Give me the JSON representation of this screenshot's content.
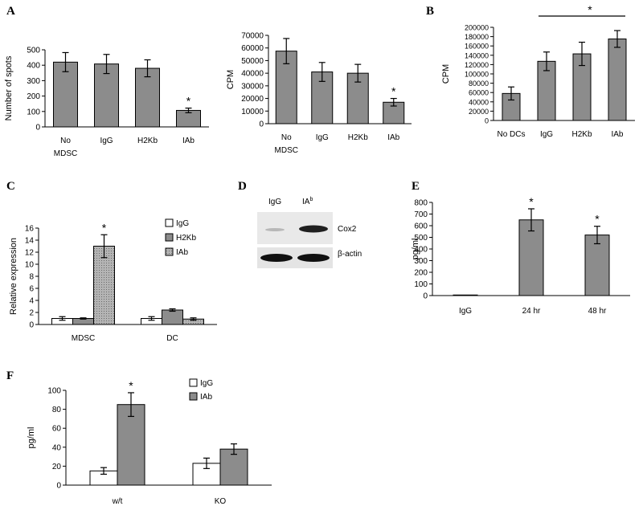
{
  "panels": {
    "A": "A",
    "B": "B",
    "C": "C",
    "D": "D",
    "E": "E",
    "F": "F"
  },
  "colors": {
    "bar_gray": "#8c8c8c",
    "bar_white": "#ffffff",
    "bar_dotted": "#a0a0a0",
    "axis": "#000000"
  },
  "blot": {
    "lane_labels": [
      "IgG",
      "IA"
    ],
    "lane_superscript": "b",
    "band_labels": [
      "Cox2",
      "β-actin"
    ]
  },
  "chart_data": [
    {
      "id": "A1",
      "type": "bar",
      "ylabel": "Number of spots",
      "ylim": [
        0,
        500
      ],
      "yticks": [
        0,
        100,
        200,
        300,
        400,
        500
      ],
      "categories": [
        [
          "No",
          "MDSC"
        ],
        [
          "IgG"
        ],
        [
          "H2Kb"
        ],
        [
          "IAb"
        ]
      ],
      "values": [
        420,
        408,
        380,
        107
      ],
      "errors": [
        62,
        62,
        55,
        15
      ],
      "annotations": [
        "",
        "",
        "",
        "*"
      ]
    },
    {
      "id": "A2",
      "type": "bar",
      "ylabel": "CPM",
      "ylim": [
        0,
        70000
      ],
      "yticks": [
        0,
        10000,
        20000,
        30000,
        40000,
        50000,
        60000,
        70000
      ],
      "categories": [
        [
          "No",
          "MDSC"
        ],
        [
          "IgG"
        ],
        [
          "H2Kb"
        ],
        [
          "IAb"
        ]
      ],
      "values": [
        57500,
        41000,
        40000,
        17000
      ],
      "errors": [
        10000,
        7500,
        7000,
        3000
      ],
      "annotations": [
        "",
        "",
        "",
        "*"
      ]
    },
    {
      "id": "B",
      "type": "bar",
      "ylabel": "CPM",
      "ylim": [
        0,
        200000
      ],
      "yticks": [
        0,
        20000,
        40000,
        60000,
        80000,
        100000,
        120000,
        140000,
        160000,
        180000,
        200000
      ],
      "categories": [
        [
          "No DCs"
        ],
        [
          "IgG"
        ],
        [
          "H2Kb"
        ],
        [
          "IAb"
        ]
      ],
      "values": [
        58000,
        127000,
        143000,
        175000
      ],
      "errors": [
        14000,
        20000,
        25000,
        18000
      ],
      "annotations": [
        "",
        "",
        "",
        ""
      ],
      "bracket": {
        "from": 1,
        "to": 3,
        "label": "*"
      }
    },
    {
      "id": "C",
      "type": "bar",
      "ylabel": "Relative expression",
      "ylim": [
        0,
        16
      ],
      "yticks": [
        0,
        2,
        4,
        6,
        8,
        10,
        12,
        14,
        16
      ],
      "categories": [
        "MDSC",
        "DC"
      ],
      "series": [
        {
          "name": "IgG",
          "values": [
            1.0,
            1.0
          ],
          "errors": [
            0.3,
            0.3
          ]
        },
        {
          "name": "H2Kb",
          "values": [
            1.0,
            2.4
          ],
          "errors": [
            0.1,
            0.2
          ]
        },
        {
          "name": "IAb",
          "values": [
            13.0,
            0.9
          ],
          "errors": [
            1.9,
            0.2
          ]
        }
      ],
      "annotations": [
        [
          "",
          "",
          "*"
        ],
        [
          "",
          "",
          ""
        ]
      ]
    },
    {
      "id": "E",
      "type": "bar",
      "ylabel": "pg/ml",
      "ylim": [
        0,
        800
      ],
      "yticks": [
        0,
        100,
        200,
        300,
        400,
        500,
        600,
        700,
        800
      ],
      "categories": [
        [
          "IgG"
        ],
        [
          "24 hr"
        ],
        [
          "48 hr"
        ]
      ],
      "values": [
        5,
        650,
        520
      ],
      "errors": [
        0,
        95,
        75
      ],
      "annotations": [
        "",
        "*",
        "*"
      ]
    },
    {
      "id": "F",
      "type": "bar",
      "ylabel": "pg/ml",
      "ylim": [
        0,
        100
      ],
      "yticks": [
        0,
        20,
        40,
        60,
        80,
        100
      ],
      "categories": [
        "w/t",
        "KO"
      ],
      "series": [
        {
          "name": "IgG",
          "values": [
            15,
            23
          ],
          "errors": [
            3.5,
            5.5
          ]
        },
        {
          "name": "IAb",
          "values": [
            85,
            38
          ],
          "errors": [
            12.5,
            5.5
          ]
        }
      ],
      "annotations": [
        [
          "",
          "*"
        ],
        [
          "",
          ""
        ]
      ]
    }
  ]
}
